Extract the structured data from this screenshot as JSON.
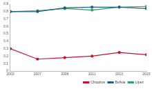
{
  "chart_data": {
    "type": "line",
    "categories": [
      "2003",
      "2007",
      "2009",
      "2011",
      "2013",
      "2015"
    ],
    "series": [
      {
        "name": "Chiquitos",
        "color": "#c8102e",
        "values": [
          0.3,
          0.16,
          0.18,
          0.2,
          0.25,
          0.22
        ],
        "marker": "circle"
      },
      {
        "name": "Bolivia",
        "color": "#1f5f7a",
        "values": [
          0.8,
          0.8,
          0.85,
          0.86,
          0.86,
          0.84
        ],
        "marker": "circle"
      },
      {
        "name": "Lípez",
        "color": "#2e9e6a",
        "values": [
          0.8,
          0.81,
          0.84,
          0.82,
          0.86,
          0.87
        ],
        "marker": "circle"
      }
    ],
    "ylim": [
      0,
      0.9
    ],
    "yticks": [
      0,
      0.1,
      0.2,
      0.3,
      0.4,
      0.5,
      0.6,
      0.7,
      0.8,
      0.9
    ],
    "grid": false,
    "legend": "bottom"
  }
}
